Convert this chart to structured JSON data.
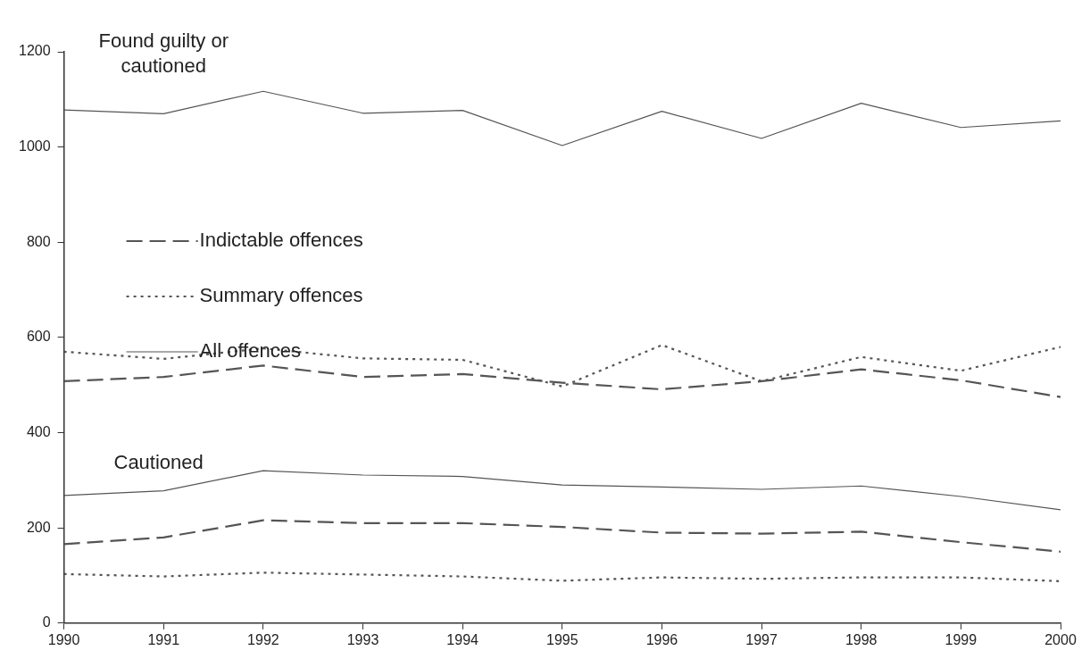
{
  "chart_data": {
    "type": "line",
    "x": [
      1990,
      1991,
      1992,
      1993,
      1994,
      1995,
      1996,
      1997,
      1998,
      1999,
      2000
    ],
    "xlim": [
      1990,
      2000
    ],
    "xticks": [
      1990,
      1991,
      1992,
      1993,
      1994,
      1995,
      1996,
      1997,
      1998,
      1999,
      2000
    ],
    "ylim": [
      0,
      1200
    ],
    "yticks": [
      0,
      200,
      400,
      600,
      800,
      1000,
      1200
    ],
    "grid": false,
    "legend": "left",
    "marker": "none",
    "series": [
      {
        "name": "Indictable offences",
        "color": "#555555",
        "line_style": "dashed",
        "values": [
          508,
          517,
          541,
          517,
          523,
          505,
          491,
          508,
          533,
          510,
          475
        ]
      },
      {
        "name": "Summary offences",
        "color": "#555555",
        "line_style": "dotted",
        "values": [
          570,
          555,
          577,
          556,
          553,
          497,
          584,
          508,
          559,
          530,
          580
        ]
      },
      {
        "name": "All offences",
        "color": "#555555",
        "line_style": "solid",
        "values": [
          1078,
          1070,
          1117,
          1071,
          1077,
          1003,
          1075,
          1018,
          1092,
          1041,
          1055
        ]
      },
      {
        "color": "#555555",
        "line_style": "dashed",
        "values": [
          166,
          180,
          216,
          210,
          210,
          202,
          190,
          188,
          192,
          170,
          150
        ]
      },
      {
        "color": "#555555",
        "line_style": "dotted",
        "values": [
          103,
          98,
          106,
          102,
          98,
          89,
          96,
          93,
          96,
          96,
          88
        ]
      },
      {
        "color": "#555555",
        "line_style": "solid",
        "values": [
          268,
          278,
          320,
          311,
          308,
          290,
          286,
          281,
          288,
          266,
          238
        ]
      }
    ],
    "annotations": [
      "Found guilty or cautioned",
      "Cautioned"
    ]
  }
}
